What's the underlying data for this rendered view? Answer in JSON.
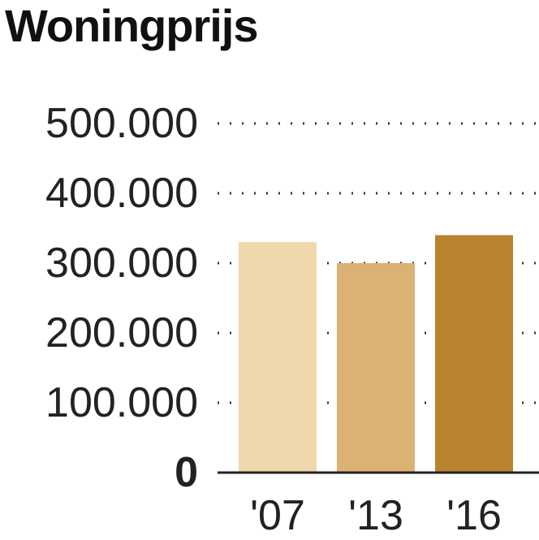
{
  "chart_data": {
    "type": "bar",
    "title": "Woningprijs",
    "categories": [
      "'07",
      "'13",
      "'16"
    ],
    "values": [
      330000,
      300000,
      340000
    ],
    "ylim": [
      0,
      500000
    ],
    "yticks": [
      0,
      100000,
      200000,
      300000,
      400000,
      500000
    ],
    "ytick_labels": [
      "0",
      "100.000",
      "200.000",
      "300.000",
      "400.000",
      "500.000"
    ],
    "xlabel": "",
    "ylabel": "",
    "grid": "dotted horizontal",
    "colors": [
      "#efd8ac",
      "#dbb274",
      "#b9822c"
    ]
  }
}
